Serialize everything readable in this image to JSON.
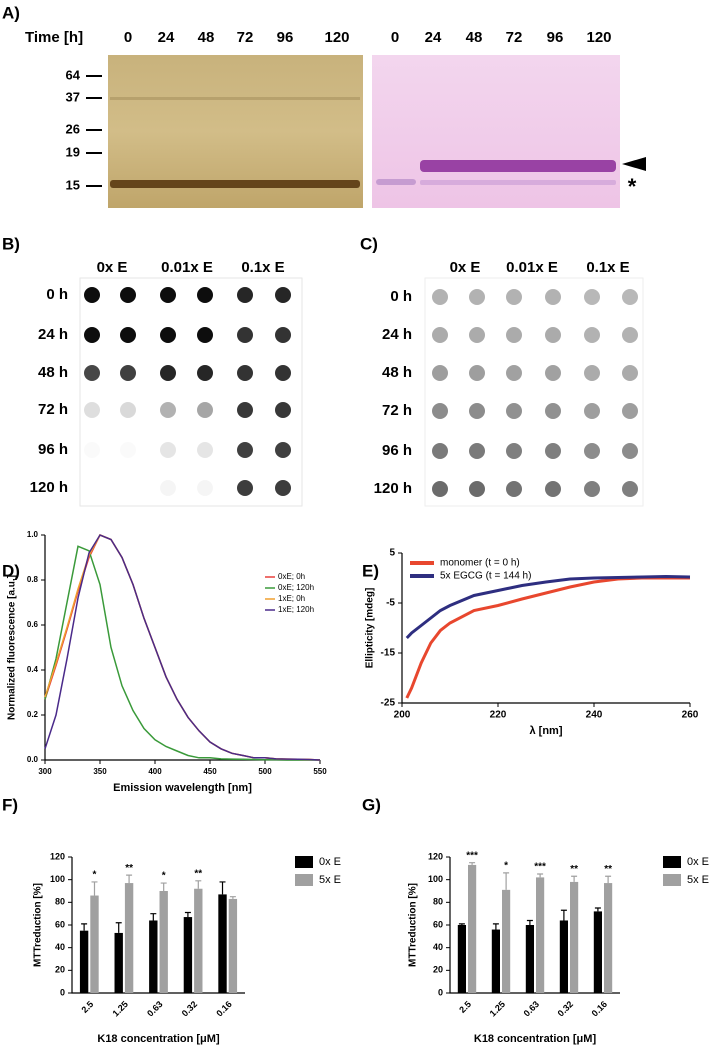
{
  "panels": {
    "A": {
      "label": "A)",
      "time_label": "Time [h]",
      "times_left": [
        0,
        24,
        48,
        72,
        96,
        120
      ],
      "times_right": [
        0,
        24,
        48,
        72,
        96,
        120
      ],
      "markers": [
        64,
        37,
        26,
        19,
        15
      ],
      "band_marker": "*"
    },
    "B": {
      "label": "B)",
      "columns": [
        "0x E",
        "0.01x E",
        "0.1x E"
      ],
      "rows": [
        "0 h",
        "24 h",
        "48 h",
        "72 h",
        "96 h",
        "120 h"
      ]
    },
    "C": {
      "label": "C)",
      "columns": [
        "0x E",
        "0.01x E",
        "0.1x E"
      ],
      "rows": [
        "0 h",
        "24 h",
        "48 h",
        "72 h",
        "96 h",
        "120 h"
      ]
    }
  },
  "chart_data": [
    {
      "type": "line",
      "label": "D)",
      "x_label": "Emission wavelength [nm]",
      "y_label": "Normalized fluorescence [a.u.]",
      "x": [
        300,
        310,
        320,
        330,
        340,
        350,
        360,
        370,
        380,
        390,
        400,
        410,
        420,
        430,
        440,
        450,
        460,
        470,
        480,
        490,
        500,
        510,
        520,
        530,
        540,
        550
      ],
      "xlim": [
        300,
        550
      ],
      "xticks": [
        300,
        350,
        400,
        450,
        500,
        550
      ],
      "ylim": [
        0,
        1
      ],
      "yticks": [
        {
          "value": 0,
          "label": "0.0"
        },
        0.2,
        0.4,
        0.6,
        0.8,
        {
          "value": 1,
          "label": "1.0"
        }
      ],
      "legend": "upper right",
      "series": [
        {
          "name": "0xE; 0h",
          "color": "#e8413c",
          "values": [
            0.27,
            0.42,
            0.58,
            0.75,
            0.9,
            1.0,
            0.98,
            0.9,
            0.78,
            0.63,
            0.5,
            0.37,
            0.27,
            0.19,
            0.13,
            0.08,
            0.05,
            0.03,
            0.02,
            0.01,
            0.01,
            0.005,
            0.004,
            0.003,
            0.002,
            0.0
          ]
        },
        {
          "name": "0xE; 120h",
          "color": "#3a9a3a",
          "values": [
            0.27,
            0.45,
            0.7,
            0.95,
            0.93,
            0.78,
            0.5,
            0.33,
            0.22,
            0.14,
            0.09,
            0.06,
            0.04,
            0.02,
            0.01,
            0.01,
            0.005,
            0.004,
            0.003,
            0.002,
            0.001,
            0.001,
            0.0,
            0.0,
            0.0,
            0.0
          ]
        },
        {
          "name": "1xE; 0h",
          "color": "#f0a030",
          "values": [
            0.28,
            0.43,
            0.59,
            0.76,
            0.91,
            1.0,
            0.98,
            0.9,
            0.78,
            0.63,
            0.5,
            0.37,
            0.27,
            0.19,
            0.13,
            0.08,
            0.05,
            0.03,
            0.02,
            0.01,
            0.01,
            0.005,
            0.004,
            0.003,
            0.002,
            0.0
          ]
        },
        {
          "name": "1xE; 120h",
          "color": "#4a2a8a",
          "values": [
            0.05,
            0.2,
            0.45,
            0.72,
            0.92,
            1.0,
            0.98,
            0.9,
            0.78,
            0.63,
            0.5,
            0.37,
            0.27,
            0.19,
            0.13,
            0.08,
            0.05,
            0.03,
            0.02,
            0.01,
            0.01,
            0.005,
            0.004,
            0.003,
            0.002,
            0.0
          ]
        }
      ]
    },
    {
      "type": "line",
      "label": "E)",
      "x_label": "λ [nm]",
      "y_label": "Ellipticity [mdeg]",
      "x": [
        201,
        202,
        204,
        206,
        208,
        210,
        215,
        220,
        225,
        230,
        235,
        240,
        245,
        250,
        255,
        260
      ],
      "xlim": [
        200,
        260
      ],
      "xticks": [
        200,
        220,
        240,
        260
      ],
      "ylim": [
        -25,
        5
      ],
      "yticks": [
        5,
        -5,
        -15,
        -25
      ],
      "legend": "upper left",
      "series": [
        {
          "name": "monomer (t = 0 h)",
          "color": "#e8472e",
          "values": [
            -24,
            -22,
            -17,
            -13,
            -10.5,
            -9,
            -6.5,
            -5.5,
            -4.2,
            -3,
            -1.8,
            -0.8,
            -0.2,
            0,
            0,
            0
          ]
        },
        {
          "name": "5x EGCG (t = 144 h)",
          "color": "#2e2e80",
          "values": [
            -12,
            -11,
            -9.5,
            -8,
            -6.5,
            -5.5,
            -3.5,
            -2.5,
            -1.5,
            -0.8,
            -0.2,
            0,
            0.1,
            0.2,
            0.3,
            0.2
          ]
        }
      ]
    },
    {
      "type": "bar",
      "label": "F)",
      "x_label": "K18 concentration [μM]",
      "y_label": "MTTreduction [%]",
      "categories": [
        "2.5",
        "1.25",
        "0.63",
        "0.32",
        "0.16"
      ],
      "ylim": [
        0,
        120
      ],
      "yticks": [
        0,
        20,
        40,
        60,
        80,
        100,
        120
      ],
      "legend": "right",
      "annotations": [
        "*",
        "**",
        "*",
        "**",
        null
      ],
      "series": [
        {
          "name": "0x E",
          "color": "#000000",
          "values": [
            55,
            53,
            64,
            67,
            87
          ],
          "errors": [
            6,
            9,
            6,
            4,
            11
          ]
        },
        {
          "name": "5x E",
          "color": "#a0a0a0",
          "values": [
            86,
            97,
            90,
            92,
            83
          ],
          "errors": [
            12,
            7,
            7,
            7,
            2
          ]
        }
      ]
    },
    {
      "type": "bar",
      "label": "G)",
      "x_label": "K18 concentration [μM]",
      "y_label": "MTTreduction [%]",
      "categories": [
        "2.5",
        "1.25",
        "0.63",
        "0.32",
        "0.16"
      ],
      "ylim": [
        0,
        120
      ],
      "yticks": [
        0,
        20,
        40,
        60,
        80,
        100,
        120
      ],
      "legend": "right",
      "annotations": [
        "***",
        "*",
        "***",
        "**",
        "**"
      ],
      "series": [
        {
          "name": "0x E",
          "color": "#000000",
          "values": [
            60,
            56,
            60,
            64,
            72
          ],
          "errors": [
            1,
            5,
            4,
            9,
            3
          ]
        },
        {
          "name": "5x E",
          "color": "#a0a0a0",
          "values": [
            113,
            91,
            102,
            98,
            97
          ],
          "errors": [
            2,
            15,
            3,
            5,
            6
          ]
        }
      ]
    }
  ]
}
